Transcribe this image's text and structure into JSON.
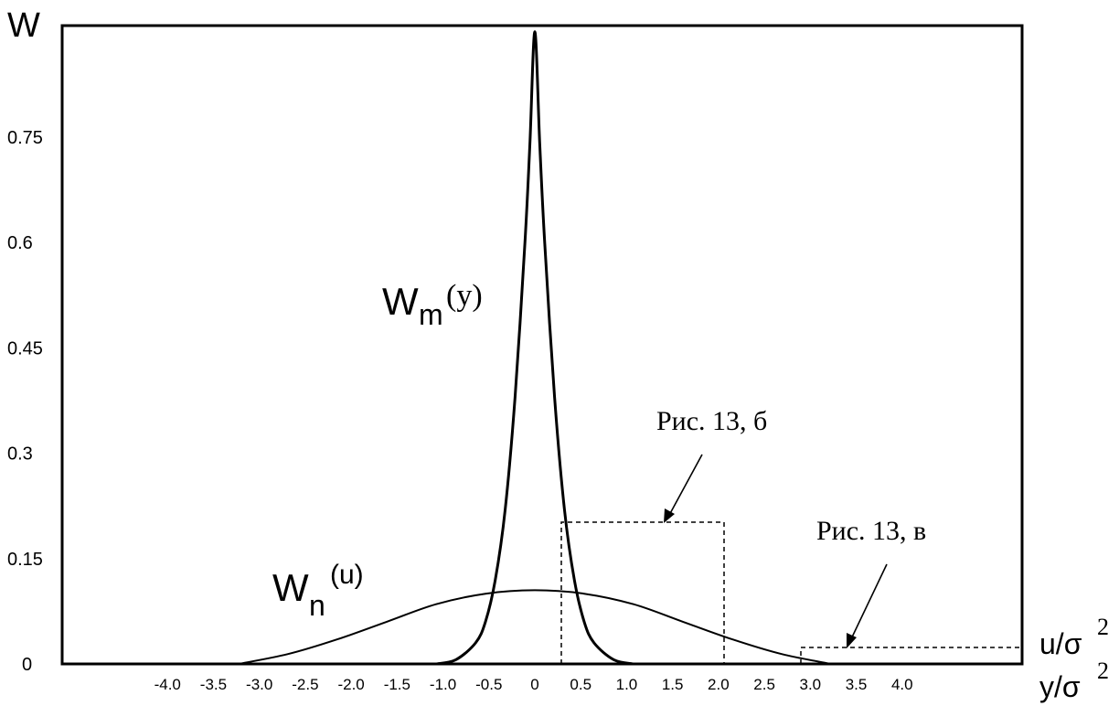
{
  "chart_data": {
    "type": "line",
    "ylabel": "W",
    "xlabel": [
      "u/σ",
      "y/σ"
    ],
    "xlabel_exp": "2",
    "y_ticks": [
      "0.75",
      "0.6",
      "0.45",
      "0.3",
      "0.15",
      "0"
    ],
    "y_tick_values": [
      0.75,
      0.6,
      0.45,
      0.3,
      0.15,
      0
    ],
    "x_ticks": [
      "-4.0",
      "-3.5",
      "-3.0",
      "-2.5",
      "-2.0",
      "-1.5",
      "-1.0",
      "-0.5",
      "0",
      "0.5",
      "1.0",
      "1.5",
      "2.0",
      "2.5",
      "3.0",
      "3.5",
      "4.0"
    ],
    "xlim": [
      -4.5,
      4.5
    ],
    "ylim": [
      0,
      0.9
    ],
    "grid": false,
    "series": [
      {
        "name": "Wm(y)",
        "label_main": "W",
        "label_sub": "m",
        "label_arg": "(y)",
        "style": "solid",
        "x": [
          -1.0,
          -0.8,
          -0.6,
          -0.5,
          -0.4,
          -0.3,
          -0.2,
          -0.1,
          -0.05,
          0,
          0.05,
          0.1,
          0.2,
          0.3,
          0.4,
          0.5,
          0.6,
          0.8,
          1.0
        ],
        "y": [
          0,
          0.006,
          0.03,
          0.06,
          0.12,
          0.22,
          0.38,
          0.6,
          0.74,
          0.9,
          0.74,
          0.6,
          0.38,
          0.22,
          0.12,
          0.06,
          0.03,
          0.006,
          0
        ]
      },
      {
        "name": "Wn(u)",
        "label_main": "W",
        "label_sub": "n",
        "label_arg": "(u)",
        "style": "solid",
        "x": [
          -3.0,
          -2.5,
          -2.0,
          -1.5,
          -1.0,
          -0.5,
          0,
          0.5,
          1.0,
          1.5,
          2.0,
          2.5,
          3.0
        ],
        "y": [
          0,
          0.014,
          0.035,
          0.06,
          0.085,
          0.1,
          0.105,
          0.1,
          0.085,
          0.06,
          0.035,
          0.014,
          0
        ]
      }
    ],
    "annotations": [
      {
        "text": "Рис. 13, б",
        "style": "dashed-box",
        "x0": 0.5,
        "x1": 2.7,
        "y": 0.208
      },
      {
        "text": "Рис. 13, в",
        "style": "dashed-box",
        "x0": 3.6,
        "x1": 5.5,
        "y": 0.026
      }
    ]
  }
}
